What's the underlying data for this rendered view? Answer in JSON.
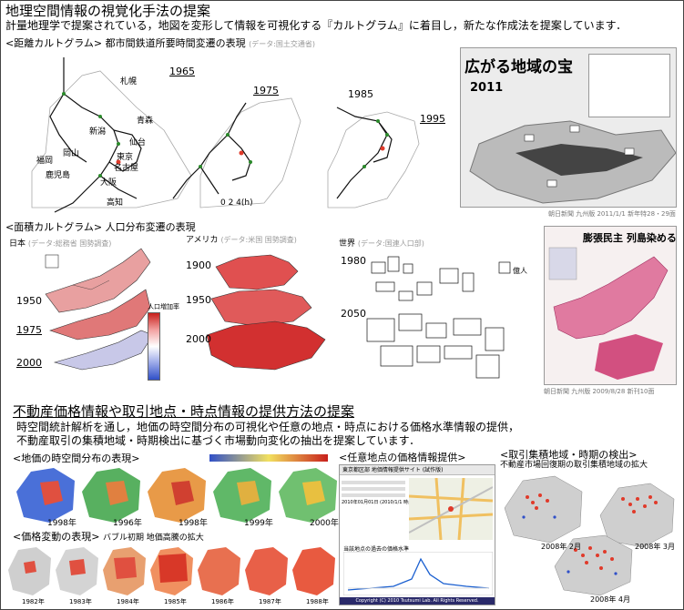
{
  "header": {
    "title": "地理空間情報の視覚化手法の提案",
    "desc": "計量地理学で提案されている，地図を変形して情報を可視化する『カルトグラム』に着目し，新たな作成法を提案しています．"
  },
  "distance": {
    "heading": "<距離カルトグラム> 都市間鉄道所要時間変遷の表現",
    "source": "(データ:国土交通省)",
    "years": [
      "1965",
      "1975",
      "1985",
      "1995"
    ],
    "cities": [
      "札幌",
      "青森",
      "新潟",
      "仙台",
      "東京",
      "名古屋",
      "大阪",
      "岡山",
      "福岡",
      "鹿児島",
      "高知"
    ],
    "scale": "0  2  4(h)",
    "newspaper_headline": "広がる地域の宝",
    "newspaper_year": "2011",
    "newspaper_credit": "朝日新聞 九州版 2011/1/1 新年特28・29面"
  },
  "area": {
    "heading": "<面積カルトグラム> 人口分布変遷の表現",
    "japan": {
      "label": "日本",
      "source": "(データ:総務省 国勢調査)",
      "years": [
        "1950",
        "1975",
        "2000"
      ],
      "legend_title": "人口増加率"
    },
    "america": {
      "label": "アメリカ",
      "source": "(データ:米国 国勢調査)",
      "years": [
        "1900",
        "1950",
        "2000"
      ]
    },
    "world": {
      "label": "世界",
      "source": "(データ:国連人口部)",
      "years": [
        "1980",
        "2050"
      ],
      "legend_label": "億人"
    },
    "newspaper_headline": "膨張民主 列島染める",
    "newspaper_credit": "朝日新聞 九州版 2009/8/28 新刊10面"
  },
  "realestate": {
    "title": "不動産価格情報や取引地点・時点情報の提供方法の提案",
    "desc1": "時空間統計解析を通し，地価の時空間分布の可視化や任意の地点・時点における価格水準情報の提供，",
    "desc2": "不動産取引の集積地域・時期検出に基づく市場動向変化の抽出を提案しています．",
    "spatio": {
      "heading": "<地価の時空間分布の表現>",
      "years": [
        "1998年",
        "1996年",
        "1998年",
        "1999年",
        "2000年"
      ]
    },
    "change": {
      "heading": "<価格変動の表現>",
      "note": "バブル初期 地価高騰の拡大",
      "years": [
        "1982年",
        "1983年",
        "1984年",
        "1985年",
        "1986年",
        "1987年",
        "1988年"
      ]
    },
    "point": {
      "heading": "<任意地点の価格情報提供>",
      "window_title": "東京都区部 地価情報提供サイト (試作版)",
      "date_label": "2010年01月01日 (2010/1/1 時点)",
      "chart_title": "当該地点の過去の価格水準",
      "footer": "Copyright (C) 2010 Tsutsumi Lab. All Rights Reserved."
    },
    "cluster": {
      "heading": "<取引集積地域・時期の検出>",
      "subtitle": "不動産市場回復期の取引集積地域の拡大",
      "years": [
        "2008年 2月",
        "2008年 3月",
        "2008年 4月"
      ]
    }
  },
  "colors": {
    "map_green": "#2a8a2a",
    "map_red": "#e03a2a",
    "pink": "#f2a0a0",
    "dark_red": "#c8201c",
    "blue_low": "#3050c8",
    "grey_land": "#bdbdbd"
  }
}
